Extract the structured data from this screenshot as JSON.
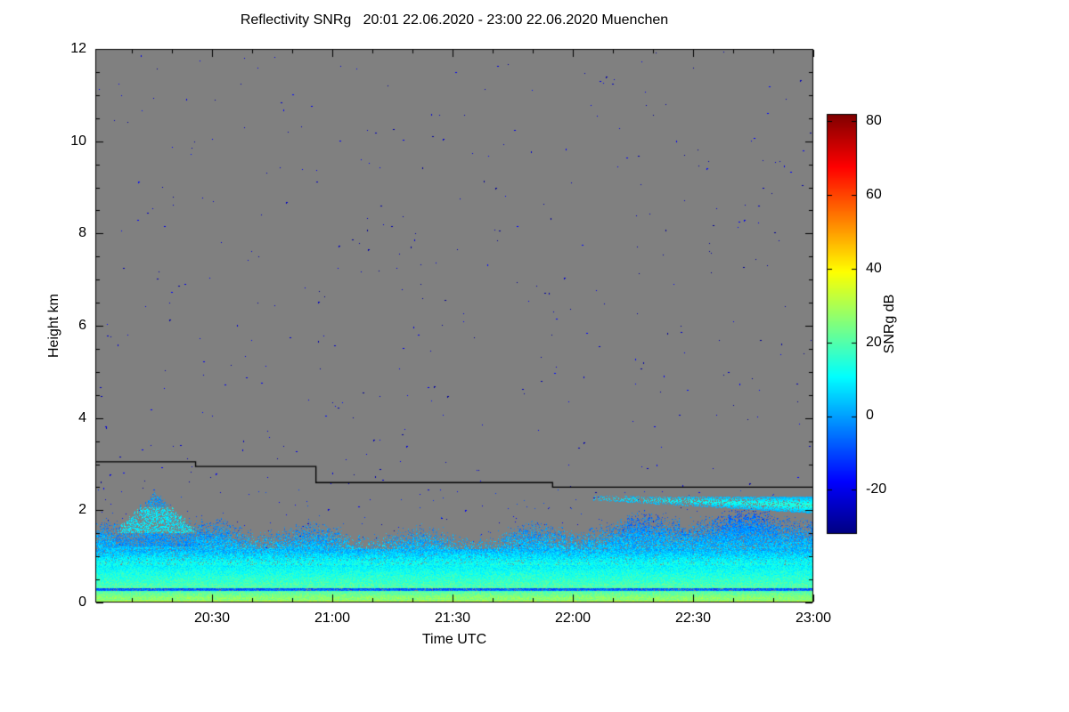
{
  "chart_data": {
    "type": "heatmap",
    "title": "Reflectivity SNRg   20:01 22.06.2020 - 23:00 22.06.2020 Muenchen",
    "xlabel": "Time UTC",
    "ylabel": "Height km",
    "x_start": "20:01",
    "x_end": "23:00",
    "x_ticks": [
      "20:30",
      "21:00",
      "21:30",
      "22:00",
      "22:30",
      "23:00"
    ],
    "x_minor_tick_minutes": 10,
    "y_ticks": [
      "0",
      "2",
      "4",
      "6",
      "8",
      "10",
      "12"
    ],
    "ylim": [
      0,
      12
    ],
    "grid": false,
    "plot_bg_color": "#808080",
    "colorbar": {
      "label": "SNRg dB",
      "ticks": [
        "80",
        "60",
        "40",
        "20",
        "0",
        "-20"
      ],
      "tick_values": [
        80,
        60,
        40,
        20,
        0,
        -20
      ],
      "range": [
        -32,
        82
      ],
      "colormap": "jet"
    },
    "boundary_line": {
      "color": "#000000",
      "description": "stepped black max-range line",
      "steps": [
        {
          "from": "20:01",
          "height_km": 3.05
        },
        {
          "from": "20:26",
          "height_km": 2.95
        },
        {
          "from": "20:56",
          "height_km": 2.6
        },
        {
          "from": "21:55",
          "height_km": 2.5
        }
      ]
    },
    "field": {
      "description": "SNRg signal confined below ~2 km; gray = no signal; sparse dark-blue noise speckle aloft",
      "noise_speckle": {
        "count": 470,
        "value_range": [
          -30,
          -16
        ]
      },
      "surface_layers": [
        {
          "h": [
            0.0,
            0.06
          ],
          "value": [
            24,
            32
          ],
          "coverage": 1.0
        },
        {
          "h": [
            0.06,
            0.24
          ],
          "value": [
            18,
            28
          ],
          "coverage": 1.0
        },
        {
          "h": [
            0.24,
            0.3
          ],
          "value": [
            -14,
            -2
          ],
          "coverage": 0.9
        },
        {
          "h": [
            0.3,
            0.8
          ],
          "value": [
            8,
            20
          ],
          "coverage": 1.0
        },
        {
          "h": [
            0.8,
            1.15
          ],
          "value": [
            0,
            13
          ],
          "coverage": 0.95
        },
        {
          "h": [
            1.15,
            2.0
          ],
          "value": [
            -16,
            4
          ],
          "coverage": 0.5
        }
      ],
      "plume": {
        "time": [
          "20:06",
          "20:26"
        ],
        "top_km": 2.35,
        "value": [
          -2,
          12
        ]
      },
      "cloud_layer": {
        "time": [
          "22:05",
          "23:00"
        ],
        "height_km": [
          1.95,
          2.35
        ],
        "value": [
          2,
          16
        ]
      }
    }
  }
}
